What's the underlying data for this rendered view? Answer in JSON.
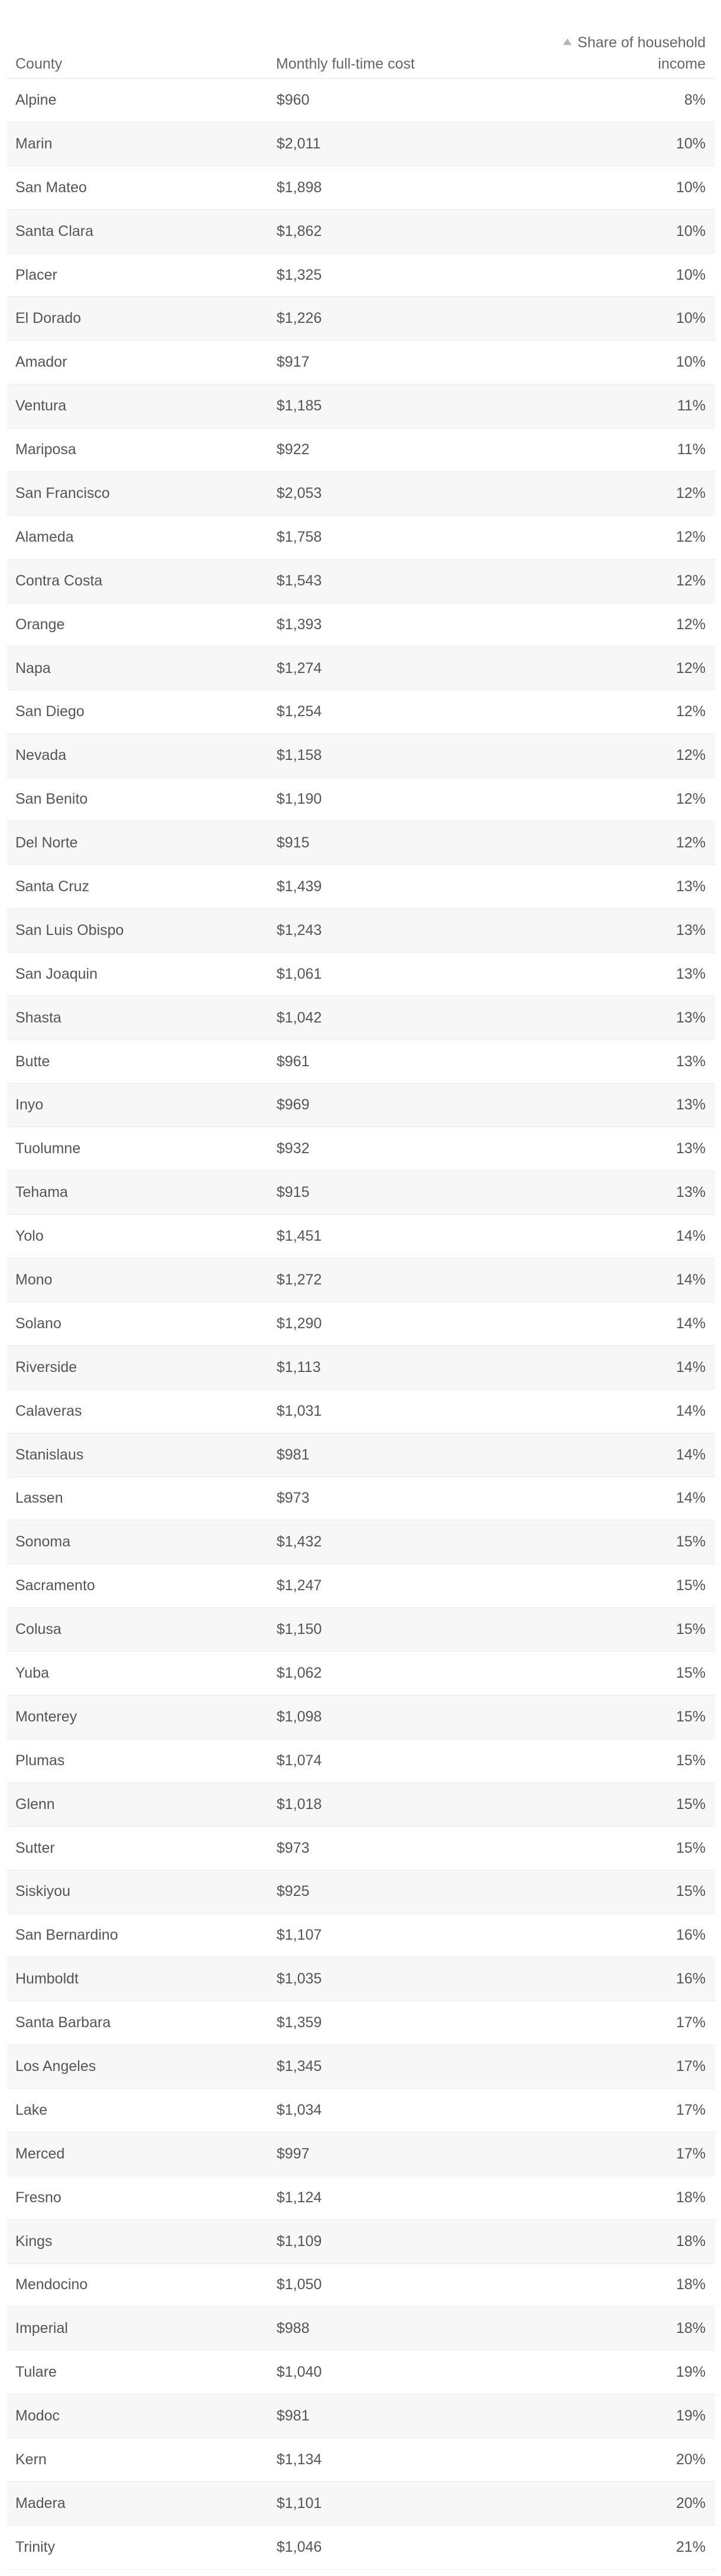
{
  "table": {
    "headers": {
      "county": "County",
      "cost": "Monthly full-time cost",
      "share_line1": "Share of household",
      "share_line2": "income"
    },
    "sort": {
      "column": "share",
      "direction": "ascending",
      "icon": "sort-ascending-icon"
    },
    "rows": [
      {
        "county": "Alpine",
        "cost": "$960",
        "share": "8%"
      },
      {
        "county": "Marin",
        "cost": "$2,011",
        "share": "10%"
      },
      {
        "county": "San Mateo",
        "cost": "$1,898",
        "share": "10%"
      },
      {
        "county": "Santa Clara",
        "cost": "$1,862",
        "share": "10%"
      },
      {
        "county": "Placer",
        "cost": "$1,325",
        "share": "10%"
      },
      {
        "county": "El Dorado",
        "cost": "$1,226",
        "share": "10%"
      },
      {
        "county": "Amador",
        "cost": "$917",
        "share": "10%"
      },
      {
        "county": "Ventura",
        "cost": "$1,185",
        "share": "11%"
      },
      {
        "county": "Mariposa",
        "cost": "$922",
        "share": "11%"
      },
      {
        "county": "San Francisco",
        "cost": "$2,053",
        "share": "12%"
      },
      {
        "county": "Alameda",
        "cost": "$1,758",
        "share": "12%"
      },
      {
        "county": "Contra Costa",
        "cost": "$1,543",
        "share": "12%"
      },
      {
        "county": "Orange",
        "cost": "$1,393",
        "share": "12%"
      },
      {
        "county": "Napa",
        "cost": "$1,274",
        "share": "12%"
      },
      {
        "county": "San Diego",
        "cost": "$1,254",
        "share": "12%"
      },
      {
        "county": "Nevada",
        "cost": "$1,158",
        "share": "12%"
      },
      {
        "county": "San Benito",
        "cost": "$1,190",
        "share": "12%"
      },
      {
        "county": "Del Norte",
        "cost": "$915",
        "share": "12%"
      },
      {
        "county": "Santa Cruz",
        "cost": "$1,439",
        "share": "13%"
      },
      {
        "county": "San Luis Obispo",
        "cost": "$1,243",
        "share": "13%"
      },
      {
        "county": "San Joaquin",
        "cost": "$1,061",
        "share": "13%"
      },
      {
        "county": "Shasta",
        "cost": "$1,042",
        "share": "13%"
      },
      {
        "county": "Butte",
        "cost": "$961",
        "share": "13%"
      },
      {
        "county": "Inyo",
        "cost": "$969",
        "share": "13%"
      },
      {
        "county": "Tuolumne",
        "cost": "$932",
        "share": "13%"
      },
      {
        "county": "Tehama",
        "cost": "$915",
        "share": "13%"
      },
      {
        "county": "Yolo",
        "cost": "$1,451",
        "share": "14%"
      },
      {
        "county": "Mono",
        "cost": "$1,272",
        "share": "14%"
      },
      {
        "county": "Solano",
        "cost": "$1,290",
        "share": "14%"
      },
      {
        "county": "Riverside",
        "cost": "$1,113",
        "share": "14%"
      },
      {
        "county": "Calaveras",
        "cost": "$1,031",
        "share": "14%"
      },
      {
        "county": "Stanislaus",
        "cost": "$981",
        "share": "14%"
      },
      {
        "county": "Lassen",
        "cost": "$973",
        "share": "14%"
      },
      {
        "county": "Sonoma",
        "cost": "$1,432",
        "share": "15%"
      },
      {
        "county": "Sacramento",
        "cost": "$1,247",
        "share": "15%"
      },
      {
        "county": "Colusa",
        "cost": "$1,150",
        "share": "15%"
      },
      {
        "county": "Yuba",
        "cost": "$1,062",
        "share": "15%"
      },
      {
        "county": "Monterey",
        "cost": "$1,098",
        "share": "15%"
      },
      {
        "county": "Plumas",
        "cost": "$1,074",
        "share": "15%"
      },
      {
        "county": "Glenn",
        "cost": "$1,018",
        "share": "15%"
      },
      {
        "county": "Sutter",
        "cost": "$973",
        "share": "15%"
      },
      {
        "county": "Siskiyou",
        "cost": "$925",
        "share": "15%"
      },
      {
        "county": "San Bernardino",
        "cost": "$1,107",
        "share": "16%"
      },
      {
        "county": "Humboldt",
        "cost": "$1,035",
        "share": "16%"
      },
      {
        "county": "Santa Barbara",
        "cost": "$1,359",
        "share": "17%"
      },
      {
        "county": "Los Angeles",
        "cost": "$1,345",
        "share": "17%"
      },
      {
        "county": "Lake",
        "cost": "$1,034",
        "share": "17%"
      },
      {
        "county": "Merced",
        "cost": "$997",
        "share": "17%"
      },
      {
        "county": "Fresno",
        "cost": "$1,124",
        "share": "18%"
      },
      {
        "county": "Kings",
        "cost": "$1,109",
        "share": "18%"
      },
      {
        "county": "Mendocino",
        "cost": "$1,050",
        "share": "18%"
      },
      {
        "county": "Imperial",
        "cost": "$988",
        "share": "18%"
      },
      {
        "county": "Tulare",
        "cost": "$1,040",
        "share": "19%"
      },
      {
        "county": "Modoc",
        "cost": "$981",
        "share": "19%"
      },
      {
        "county": "Kern",
        "cost": "$1,134",
        "share": "20%"
      },
      {
        "county": "Madera",
        "cost": "$1,101",
        "share": "20%"
      },
      {
        "county": "Trinity",
        "cost": "$1,046",
        "share": "21%"
      }
    ]
  }
}
